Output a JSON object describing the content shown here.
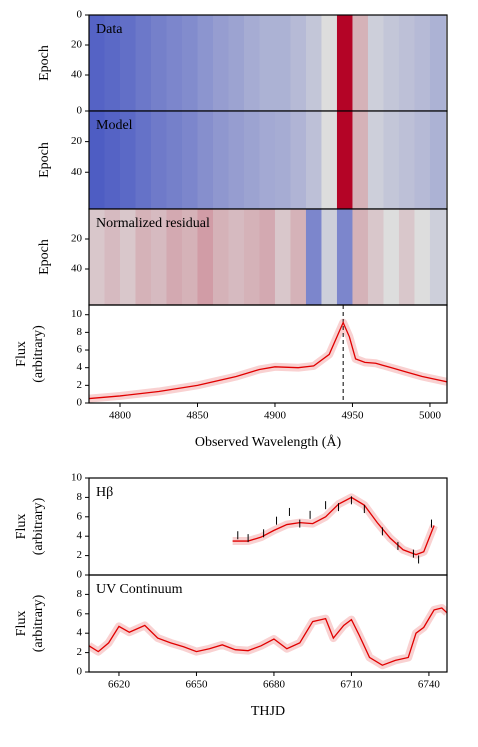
{
  "chart_data": [
    {
      "type": "heatmap",
      "label": "Data",
      "label_color": "#ffffff",
      "y_label": "Epoch",
      "x_edges": [
        4780,
        4790,
        4800,
        4810,
        4820,
        4830,
        4840,
        4850,
        4860,
        4870,
        4880,
        4890,
        4900,
        4910,
        4920,
        4930,
        4940,
        4950,
        4960,
        4970,
        4980,
        4990,
        5000,
        5010
      ],
      "values": [
        0.08,
        0.1,
        0.12,
        0.15,
        0.18,
        0.2,
        0.22,
        0.25,
        0.28,
        0.3,
        0.33,
        0.35,
        0.35,
        0.38,
        0.42,
        0.5,
        1.0,
        0.6,
        0.45,
        0.42,
        0.4,
        0.38,
        0.35
      ],
      "clim": [
        0,
        1
      ],
      "xlim": [
        4780,
        5011
      ],
      "ylim": [
        64,
        0
      ],
      "yticks": [
        0,
        20,
        40
      ]
    },
    {
      "type": "heatmap",
      "label": "Model",
      "label_color": "#ffffff",
      "y_label": "Epoch",
      "x_edges": [
        4780,
        4790,
        4800,
        4810,
        4820,
        4830,
        4840,
        4850,
        4860,
        4870,
        4880,
        4890,
        4900,
        4910,
        4920,
        4930,
        4940,
        4950,
        4960,
        4970,
        4980,
        4990,
        5000,
        5010
      ],
      "values": [
        0.06,
        0.08,
        0.1,
        0.13,
        0.16,
        0.18,
        0.2,
        0.23,
        0.26,
        0.28,
        0.3,
        0.32,
        0.33,
        0.36,
        0.4,
        0.5,
        1.0,
        0.6,
        0.45,
        0.42,
        0.4,
        0.38,
        0.35
      ],
      "clim": [
        0,
        1
      ],
      "xlim": [
        4780,
        5011
      ],
      "ylim": [
        64,
        0
      ],
      "yticks": [
        0,
        20,
        40
      ]
    },
    {
      "type": "heatmap",
      "label": "Normalized residual",
      "label_color": "#000000",
      "y_label": "Epoch",
      "x_edges": [
        4780,
        4790,
        4800,
        4810,
        4820,
        4830,
        4840,
        4850,
        4860,
        4870,
        4880,
        4890,
        4900,
        4910,
        4920,
        4930,
        4940,
        4950,
        4960,
        4970,
        4980,
        4990,
        5000,
        5010
      ],
      "values": [
        0.55,
        0.58,
        0.55,
        0.6,
        0.58,
        0.62,
        0.6,
        0.65,
        0.6,
        0.58,
        0.6,
        0.62,
        0.55,
        0.6,
        0.2,
        0.45,
        0.2,
        0.6,
        0.55,
        0.5,
        0.55,
        0.5,
        0.45
      ],
      "clim": [
        0,
        1
      ],
      "xlim": [
        4780,
        5011
      ],
      "ylim": [
        64,
        0
      ],
      "yticks": [
        20,
        40
      ]
    },
    {
      "type": "line",
      "y_label": [
        "Flux",
        "(arbitrary)"
      ],
      "x_label": "Observed Wavelength (Å)",
      "xlim": [
        4780,
        5011
      ],
      "xticks": [
        4800,
        4850,
        4900,
        4950,
        5000
      ],
      "ylim": [
        0,
        11.1
      ],
      "yticks": [
        0,
        2,
        4,
        6,
        8,
        10
      ],
      "vline": 4944,
      "series": [
        {
          "color": "#e00000",
          "x": [
            4780,
            4800,
            4825,
            4850,
            4875,
            4890,
            4900,
            4915,
            4925,
            4935,
            4940,
            4944,
            4948,
            4952,
            4958,
            4965,
            4975,
            4985,
            4995,
            5011
          ],
          "values": [
            0.5,
            0.8,
            1.3,
            2.0,
            3.0,
            3.8,
            4.1,
            4.0,
            4.2,
            5.5,
            7.5,
            9.1,
            7.5,
            5.0,
            4.6,
            4.5,
            4.0,
            3.5,
            3.0,
            2.4
          ]
        }
      ]
    },
    {
      "type": "line",
      "label": "Hβ",
      "y_label": [
        "Flux",
        "(arbitrary)"
      ],
      "xlim": [
        6608.4,
        6747
      ],
      "ylim": [
        0,
        10
      ],
      "yticks": [
        0,
        2,
        4,
        6,
        8,
        10
      ],
      "series": [
        {
          "color": "#e00000",
          "x": [
            6664,
            6670,
            6675,
            6680,
            6685,
            6690,
            6695,
            6700,
            6705,
            6710,
            6715,
            6720,
            6725,
            6730,
            6735,
            6738,
            6742
          ],
          "values": [
            3.5,
            3.5,
            3.9,
            4.6,
            5.2,
            5.4,
            5.3,
            6.0,
            7.3,
            8.0,
            7.2,
            5.4,
            3.8,
            2.6,
            2.1,
            2.4,
            5.1
          ]
        },
        {
          "color": "#000000",
          "style": "points",
          "x": [
            6666,
            6670,
            6676,
            6681,
            6686,
            6690,
            6694,
            6700,
            6705,
            6710,
            6715,
            6722,
            6728,
            6734,
            6736,
            6741
          ],
          "values": [
            4.1,
            3.8,
            4.3,
            5.6,
            6.5,
            5.3,
            6.2,
            7.2,
            7.0,
            7.7,
            6.8,
            4.5,
            3.0,
            2.2,
            1.6,
            5.3
          ]
        }
      ]
    },
    {
      "type": "line",
      "label": "UV Continuum",
      "y_label": [
        "Flux",
        "(arbitrary)"
      ],
      "x_label": "THJD",
      "xlim": [
        6608.4,
        6747
      ],
      "xticks": [
        6620,
        6650,
        6680,
        6710,
        6740
      ],
      "ylim": [
        0,
        10
      ],
      "yticks": [
        0,
        2,
        4,
        6,
        8
      ],
      "series": [
        {
          "color": "#e00000",
          "x": [
            6608.4,
            6612,
            6616,
            6620,
            6624,
            6630,
            6635,
            6640,
            6645,
            6650,
            6655,
            6660,
            6665,
            6670,
            6675,
            6680,
            6685,
            6690,
            6695,
            6700,
            6703,
            6707,
            6710,
            6713,
            6717,
            6722,
            6727,
            6732,
            6735,
            6738,
            6742,
            6745,
            6747
          ],
          "values": [
            2.7,
            2.1,
            3.0,
            4.7,
            4.1,
            4.8,
            3.5,
            3.0,
            2.6,
            2.1,
            2.4,
            2.8,
            2.3,
            2.2,
            2.7,
            3.4,
            2.4,
            3.0,
            5.2,
            5.5,
            3.5,
            4.8,
            5.4,
            3.8,
            1.5,
            0.7,
            1.2,
            1.5,
            4.0,
            4.6,
            6.4,
            6.6,
            6.1
          ]
        }
      ]
    }
  ]
}
